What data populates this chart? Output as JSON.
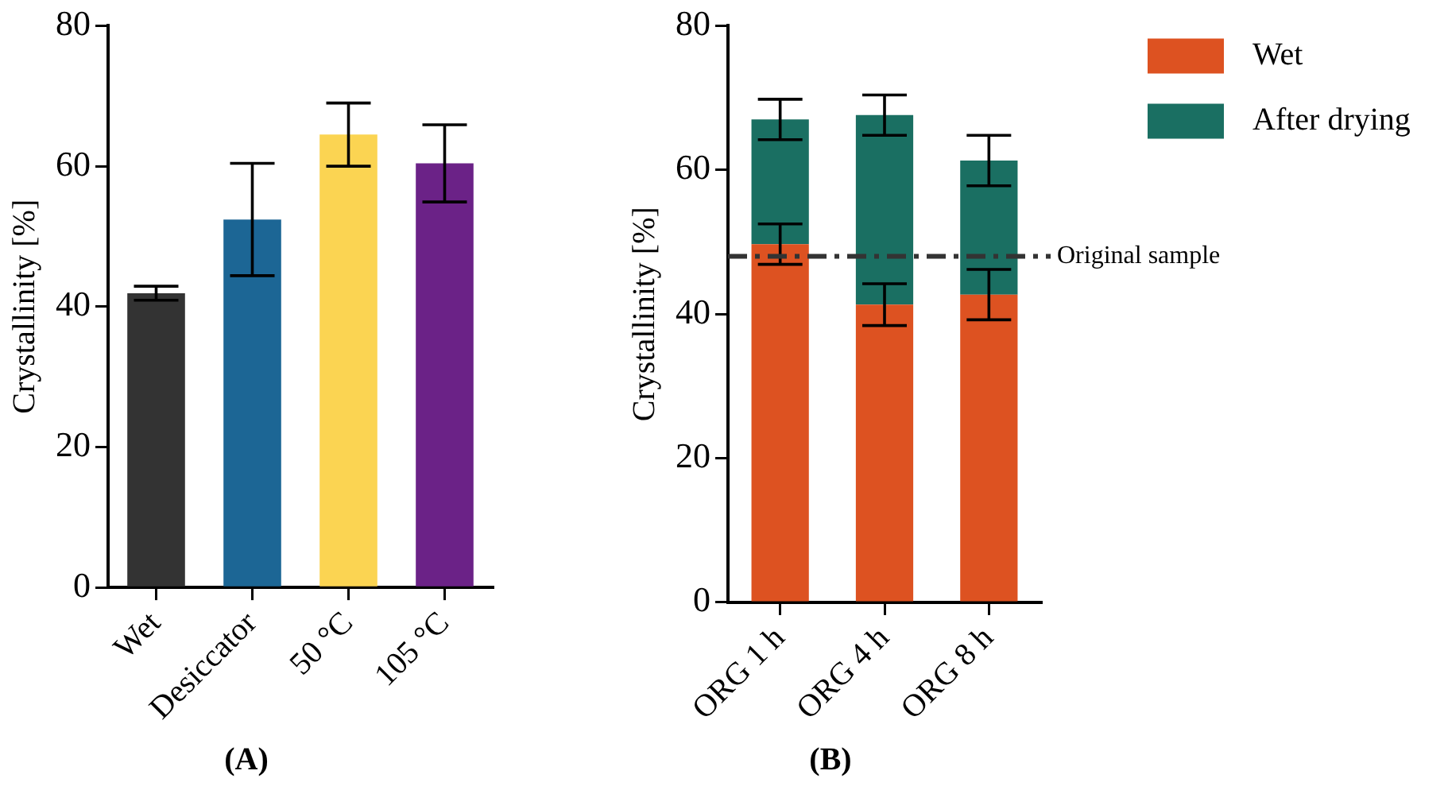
{
  "chart_data": [
    {
      "type": "bar",
      "title": "(A)",
      "ylabel": "Crystallinity [%]",
      "categories": [
        "Wet",
        "Desiccator",
        "50 °C",
        "105 °C"
      ],
      "values": [
        41.9,
        52.4,
        64.5,
        60.4
      ],
      "colors": [
        "#333333",
        "#1c6695",
        "#fbd452",
        "#6b2287"
      ],
      "errors": [
        1,
        8,
        4.5,
        5.5
      ],
      "ylim": [
        0,
        80
      ],
      "yticks": [
        0,
        20,
        40,
        60,
        80
      ],
      "grid": false,
      "legend": false
    },
    {
      "type": "bar",
      "title": "(B)",
      "ylabel": "Crystallinity [%]",
      "categories": [
        "ORG 1 h",
        "ORG 4 h",
        "ORG 8 h"
      ],
      "stacked": true,
      "series": [
        {
          "name": "Wet",
          "color": "#dd5221",
          "values": [
            49.7,
            41.3,
            42.7
          ],
          "errors": [
            2.8,
            2.9,
            3.5
          ]
        },
        {
          "name": "After drying",
          "color": "#1a6f62",
          "values": [
            17.3,
            26.3,
            18.6
          ],
          "errors": [
            2.8,
            2.8,
            3.5
          ]
        }
      ],
      "ylim": [
        0,
        80
      ],
      "yticks": [
        0,
        20,
        40,
        60,
        80
      ],
      "grid": false,
      "legend": "top right",
      "ref_lines": [
        {
          "axis": "y",
          "value": 48,
          "label": "Original sample",
          "color": "#333333",
          "line_style": "dashed"
        }
      ]
    }
  ]
}
